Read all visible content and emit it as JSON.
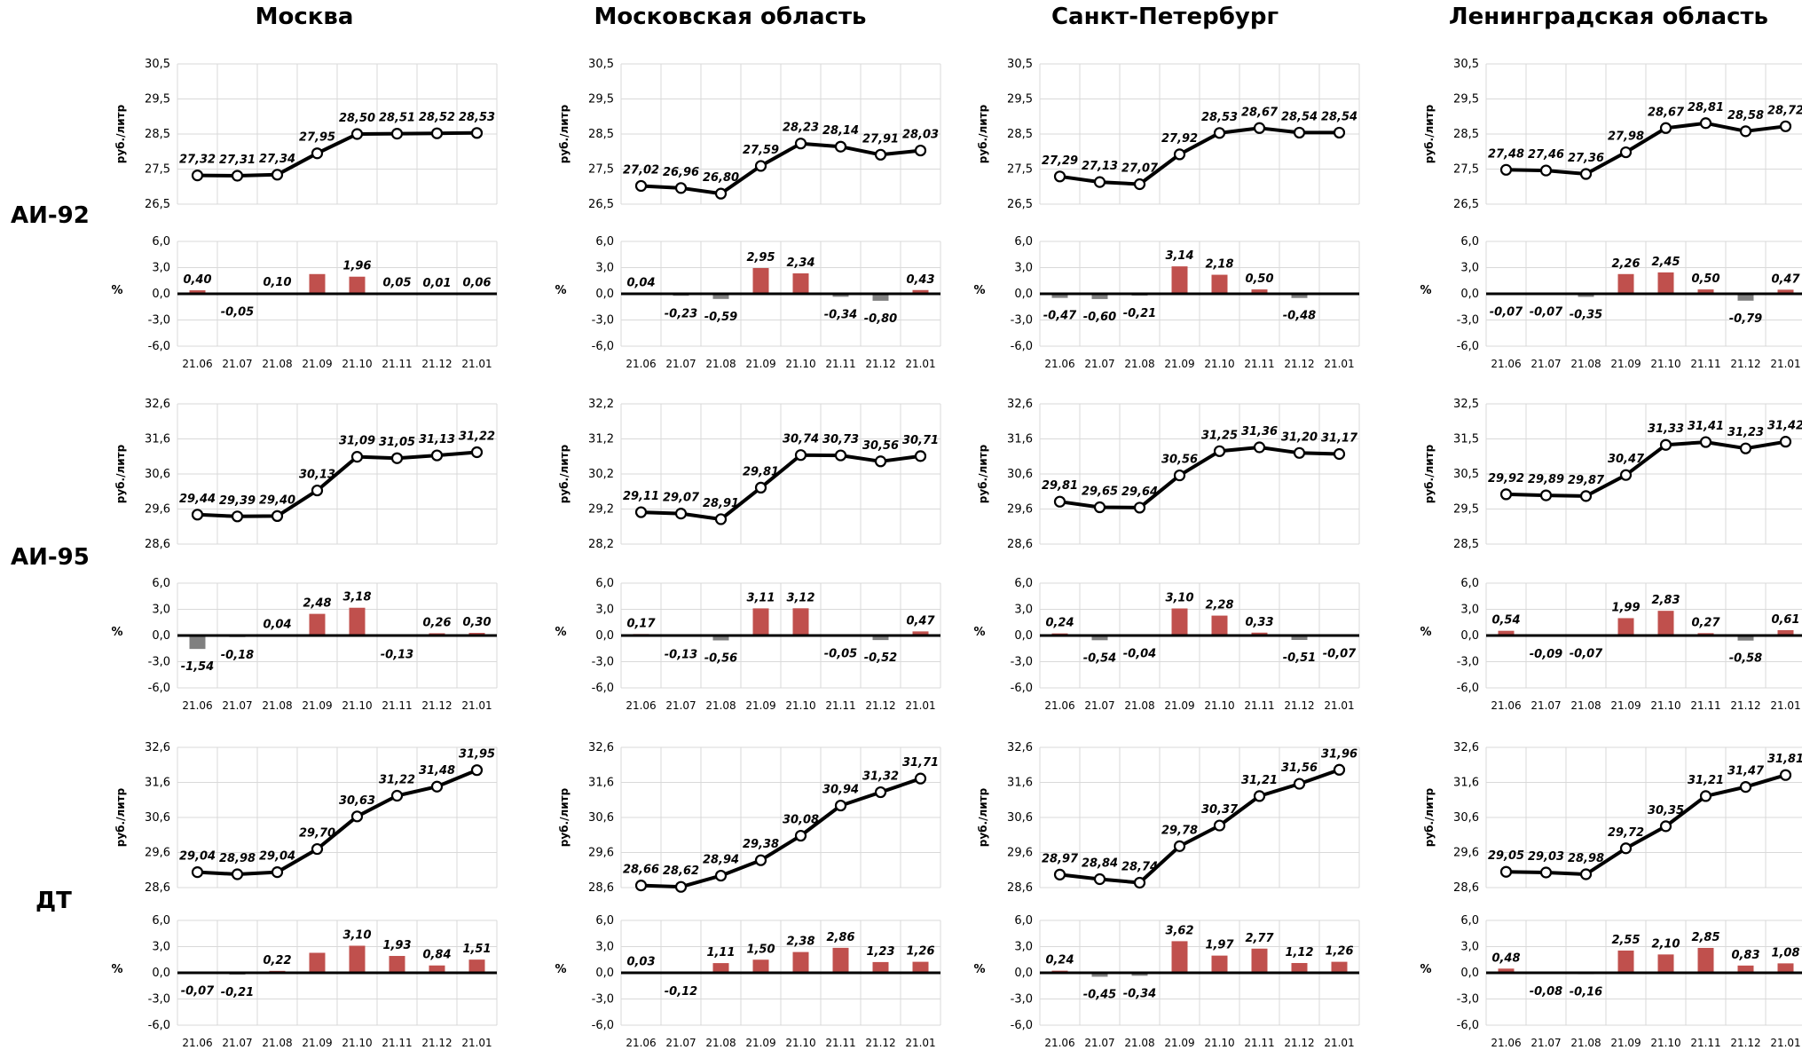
{
  "regions": [
    "Москва",
    "Московская область",
    "Санкт-Петербург",
    "Ленинградская область"
  ],
  "fuels": [
    "АИ-92",
    "АИ-95",
    "ДТ"
  ],
  "units": {
    "price": "руб./литр",
    "change": "%"
  },
  "colors": {
    "line": "#000000",
    "positive_bar": "#c0504d",
    "negative_bar": "#808080",
    "grid": "#d9d9d9"
  },
  "chart_data": [
    {
      "type": "line",
      "region": "Москва",
      "fuel": "АИ-92",
      "categories": [
        "21.06",
        "21.07",
        "21.08",
        "21.09",
        "21.10",
        "21.11",
        "21.12",
        "21.01"
      ],
      "values": [
        27.32,
        27.31,
        27.34,
        27.95,
        28.5,
        28.51,
        28.52,
        28.53
      ],
      "labels": [
        "27,32",
        "27,31",
        "27,34",
        "27,95",
        "28,50",
        "28,51",
        "28,52",
        "28,53"
      ],
      "ylabel": "руб./литр",
      "ylim": [
        26.5,
        30.5
      ],
      "yticks": [
        "26,5",
        "27,5",
        "28,5",
        "29,5",
        "30,5"
      ]
    },
    {
      "type": "bar",
      "region": "Москва",
      "fuel": "АИ-92",
      "categories": [
        "21.06",
        "21.07",
        "21.08",
        "21.09",
        "21.10",
        "21.11",
        "21.12",
        "21.01"
      ],
      "values": [
        0.4,
        -0.05,
        0.1,
        2.26,
        1.96,
        0.05,
        0.01,
        0.06
      ],
      "labels": [
        "0,40",
        "-0,05",
        "0,10",
        "",
        "1,96",
        "0,05",
        "0,01",
        "0,06"
      ],
      "ylabel": "%",
      "ylim": [
        -6,
        6
      ],
      "yticks": [
        "-6,0",
        "-3,0",
        "0,0",
        "3,0",
        "6,0"
      ]
    },
    {
      "type": "line",
      "region": "Московская область",
      "fuel": "АИ-92",
      "categories": [
        "21.06",
        "21.07",
        "21.08",
        "21.09",
        "21.10",
        "21.11",
        "21.12",
        "21.01"
      ],
      "values": [
        27.02,
        26.96,
        26.8,
        27.59,
        28.23,
        28.14,
        27.91,
        28.03
      ],
      "labels": [
        "27,02",
        "26,96",
        "26,80",
        "27,59",
        "28,23",
        "28,14",
        "27,91",
        "28,03"
      ],
      "ylabel": "руб./литр",
      "ylim": [
        26.5,
        30.5
      ],
      "yticks": [
        "26,5",
        "27,5",
        "28,5",
        "29,5",
        "30,5"
      ]
    },
    {
      "type": "bar",
      "region": "Московская область",
      "fuel": "АИ-92",
      "categories": [
        "21.06",
        "21.07",
        "21.08",
        "21.09",
        "21.10",
        "21.11",
        "21.12",
        "21.01"
      ],
      "values": [
        0.04,
        -0.23,
        -0.59,
        2.95,
        2.34,
        -0.34,
        -0.8,
        0.43
      ],
      "labels": [
        "0,04",
        "-0,23",
        "-0,59",
        "2,95",
        "2,34",
        "-0,34",
        "-0,80",
        "0,43"
      ],
      "ylabel": "%",
      "ylim": [
        -6,
        6
      ],
      "yticks": [
        "-6,0",
        "-3,0",
        "0,0",
        "3,0",
        "6,0"
      ]
    },
    {
      "type": "line",
      "region": "Санкт-Петербург",
      "fuel": "АИ-92",
      "categories": [
        "21.06",
        "21.07",
        "21.08",
        "21.09",
        "21.10",
        "21.11",
        "21.12",
        "21.01"
      ],
      "values": [
        27.29,
        27.13,
        27.07,
        27.92,
        28.53,
        28.67,
        28.54,
        28.54
      ],
      "labels": [
        "27,29",
        "27,13",
        "27,07",
        "27,92",
        "28,53",
        "28,67",
        "28,54",
        "28,54"
      ],
      "ylabel": "руб./литр",
      "ylim": [
        26.5,
        30.5
      ],
      "yticks": [
        "26,5",
        "27,5",
        "28,5",
        "29,5",
        "30,5"
      ]
    },
    {
      "type": "bar",
      "region": "Санкт-Петербург",
      "fuel": "АИ-92",
      "categories": [
        "21.06",
        "21.07",
        "21.08",
        "21.09",
        "21.10",
        "21.11",
        "21.12",
        "21.01"
      ],
      "values": [
        -0.47,
        -0.6,
        -0.21,
        3.14,
        2.18,
        0.5,
        -0.48,
        0.0
      ],
      "labels": [
        "-0,47",
        "-0,60",
        "-0,21",
        "3,14",
        "2,18",
        "0,50",
        "-0,48",
        ""
      ],
      "ylabel": "%",
      "ylim": [
        -6,
        6
      ],
      "yticks": [
        "-6,0",
        "-3,0",
        "0,0",
        "3,0",
        "6,0"
      ]
    },
    {
      "type": "line",
      "region": "Ленинградская область",
      "fuel": "АИ-92",
      "categories": [
        "21.06",
        "21.07",
        "21.08",
        "21.09",
        "21.10",
        "21.11",
        "21.12",
        "21.01"
      ],
      "values": [
        27.48,
        27.46,
        27.36,
        27.98,
        28.67,
        28.81,
        28.58,
        28.72
      ],
      "labels": [
        "27,48",
        "27,46",
        "27,36",
        "27,98",
        "28,67",
        "28,81",
        "28,58",
        "28,72"
      ],
      "ylabel": "руб./литр",
      "ylim": [
        26.5,
        30.5
      ],
      "yticks": [
        "26,5",
        "27,5",
        "28,5",
        "29,5",
        "30,5"
      ]
    },
    {
      "type": "bar",
      "region": "Ленинградская область",
      "fuel": "АИ-92",
      "categories": [
        "21.06",
        "21.07",
        "21.08",
        "21.09",
        "21.10",
        "21.11",
        "21.12",
        "21.01"
      ],
      "values": [
        -0.07,
        -0.07,
        -0.35,
        2.26,
        2.45,
        0.5,
        -0.79,
        0.47
      ],
      "labels": [
        "-0,07",
        "-0,07",
        "-0,35",
        "2,26",
        "2,45",
        "0,50",
        "-0,79",
        "0,47"
      ],
      "ylabel": "%",
      "ylim": [
        -6,
        6
      ],
      "yticks": [
        "-6,0",
        "-3,0",
        "0,0",
        "3,0",
        "6,0"
      ]
    },
    {
      "type": "line",
      "region": "Москва",
      "fuel": "АИ-95",
      "categories": [
        "21.06",
        "21.07",
        "21.08",
        "21.09",
        "21.10",
        "21.11",
        "21.12",
        "21.01"
      ],
      "values": [
        29.44,
        29.39,
        29.4,
        30.13,
        31.09,
        31.05,
        31.13,
        31.22
      ],
      "labels": [
        "29,44",
        "29,39",
        "29,40",
        "30,13",
        "31,09",
        "31,05",
        "31,13",
        "31,22"
      ],
      "ylabel": "руб./литр",
      "ylim": [
        28.6,
        32.6
      ],
      "yticks": [
        "28,6",
        "29,6",
        "30,6",
        "31,6",
        "32,6"
      ]
    },
    {
      "type": "bar",
      "region": "Москва",
      "fuel": "АИ-95",
      "categories": [
        "21.06",
        "21.07",
        "21.08",
        "21.09",
        "21.10",
        "21.11",
        "21.12",
        "21.01"
      ],
      "values": [
        -1.54,
        -0.18,
        0.04,
        2.48,
        3.18,
        -0.13,
        0.26,
        0.3
      ],
      "labels": [
        "-1,54",
        "-0,18",
        "0,04",
        "2,48",
        "3,18",
        "-0,13",
        "0,26",
        "0,30"
      ],
      "ylabel": "%",
      "ylim": [
        -6,
        6
      ],
      "yticks": [
        "-6,0",
        "-3,0",
        "0,0",
        "3,0",
        "6,0"
      ]
    },
    {
      "type": "line",
      "region": "Московская область",
      "fuel": "АИ-95",
      "categories": [
        "21.06",
        "21.07",
        "21.08",
        "21.09",
        "21.10",
        "21.11",
        "21.12",
        "21.01"
      ],
      "values": [
        29.11,
        29.07,
        28.91,
        29.81,
        30.74,
        30.73,
        30.56,
        30.71
      ],
      "labels": [
        "29,11",
        "29,07",
        "28,91",
        "29,81",
        "30,74",
        "30,73",
        "30,56",
        "30,71"
      ],
      "ylabel": "руб./литр",
      "ylim": [
        28.2,
        32.2
      ],
      "yticks": [
        "28,2",
        "29,2",
        "30,2",
        "31,2",
        "32,2"
      ]
    },
    {
      "type": "bar",
      "region": "Московская область",
      "fuel": "АИ-95",
      "categories": [
        "21.06",
        "21.07",
        "21.08",
        "21.09",
        "21.10",
        "21.11",
        "21.12",
        "21.01"
      ],
      "values": [
        0.17,
        -0.13,
        -0.56,
        3.11,
        3.12,
        -0.05,
        -0.52,
        0.47
      ],
      "labels": [
        "0,17",
        "-0,13",
        "-0,56",
        "3,11",
        "3,12",
        "-0,05",
        "-0,52",
        "0,47"
      ],
      "ylabel": "%",
      "ylim": [
        -6,
        6
      ],
      "yticks": [
        "-6,0",
        "-3,0",
        "0,0",
        "3,0",
        "6,0"
      ]
    },
    {
      "type": "line",
      "region": "Санкт-Петербург",
      "fuel": "АИ-95",
      "categories": [
        "21.06",
        "21.07",
        "21.08",
        "21.09",
        "21.10",
        "21.11",
        "21.12",
        "21.01"
      ],
      "values": [
        29.81,
        29.65,
        29.64,
        30.56,
        31.25,
        31.36,
        31.2,
        31.17
      ],
      "labels": [
        "29,81",
        "29,65",
        "29,64",
        "30,56",
        "31,25",
        "31,36",
        "31,20",
        "31,17"
      ],
      "ylabel": "руб./литр",
      "ylim": [
        28.6,
        32.6
      ],
      "yticks": [
        "28,6",
        "29,6",
        "30,6",
        "31,6",
        "32,6"
      ]
    },
    {
      "type": "bar",
      "region": "Санкт-Петербург",
      "fuel": "АИ-95",
      "categories": [
        "21.06",
        "21.07",
        "21.08",
        "21.09",
        "21.10",
        "21.11",
        "21.12",
        "21.01"
      ],
      "values": [
        0.24,
        -0.54,
        -0.04,
        3.1,
        2.28,
        0.33,
        -0.51,
        -0.07
      ],
      "labels": [
        "0,24",
        "-0,54",
        "-0,04",
        "3,10",
        "2,28",
        "0,33",
        "-0,51",
        "-0,07"
      ],
      "ylabel": "%",
      "ylim": [
        -6,
        6
      ],
      "yticks": [
        "-6,0",
        "-3,0",
        "0,0",
        "3,0",
        "6,0"
      ]
    },
    {
      "type": "line",
      "region": "Ленинградская область",
      "fuel": "АИ-95",
      "categories": [
        "21.06",
        "21.07",
        "21.08",
        "21.09",
        "21.10",
        "21.11",
        "21.12",
        "21.01"
      ],
      "values": [
        29.92,
        29.89,
        29.87,
        30.47,
        31.33,
        31.41,
        31.23,
        31.42
      ],
      "labels": [
        "29,92",
        "29,89",
        "29,87",
        "30,47",
        "31,33",
        "31,41",
        "31,23",
        "31,42"
      ],
      "ylabel": "руб./литр",
      "ylim": [
        28.5,
        32.5
      ],
      "yticks": [
        "28,5",
        "29,5",
        "30,5",
        "31,5",
        "32,5"
      ]
    },
    {
      "type": "bar",
      "region": "Ленинградская область",
      "fuel": "АИ-95",
      "categories": [
        "21.06",
        "21.07",
        "21.08",
        "21.09",
        "21.10",
        "21.11",
        "21.12",
        "21.01"
      ],
      "values": [
        0.54,
        -0.09,
        -0.07,
        1.99,
        2.83,
        0.27,
        -0.58,
        0.61
      ],
      "labels": [
        "0,54",
        "-0,09",
        "-0,07",
        "1,99",
        "2,83",
        "0,27",
        "-0,58",
        "0,61"
      ],
      "ylabel": "%",
      "ylim": [
        -6,
        6
      ],
      "yticks": [
        "-6,0",
        "-3,0",
        "0,0",
        "3,0",
        "6,0"
      ]
    },
    {
      "type": "line",
      "region": "Москва",
      "fuel": "ДТ",
      "categories": [
        "21.06",
        "21.07",
        "21.08",
        "21.09",
        "21.10",
        "21.11",
        "21.12",
        "21.01"
      ],
      "values": [
        29.04,
        28.98,
        29.04,
        29.7,
        30.63,
        31.22,
        31.48,
        31.95
      ],
      "labels": [
        "29,04",
        "28,98",
        "29,04",
        "29,70",
        "30,63",
        "31,22",
        "31,48",
        "31,95"
      ],
      "ylabel": "руб./литр",
      "ylim": [
        28.6,
        32.6
      ],
      "yticks": [
        "28,6",
        "29,6",
        "30,6",
        "31,6",
        "32,6"
      ]
    },
    {
      "type": "bar",
      "region": "Москва",
      "fuel": "ДТ",
      "categories": [
        "21.06",
        "21.07",
        "21.08",
        "21.09",
        "21.10",
        "21.11",
        "21.12",
        "21.01"
      ],
      "values": [
        -0.07,
        -0.21,
        0.22,
        2.29,
        3.1,
        1.93,
        0.84,
        1.51
      ],
      "labels": [
        "-0,07",
        "-0,21",
        "0,22",
        "",
        "3,10",
        "1,93",
        "0,84",
        "1,51"
      ],
      "ylabel": "%",
      "ylim": [
        -6,
        6
      ],
      "yticks": [
        "-6,0",
        "-3,0",
        "0,0",
        "3,0",
        "6,0"
      ]
    },
    {
      "type": "line",
      "region": "Московская область",
      "fuel": "ДТ",
      "categories": [
        "21.06",
        "21.07",
        "21.08",
        "21.09",
        "21.10",
        "21.11",
        "21.12",
        "21.01"
      ],
      "values": [
        28.66,
        28.62,
        28.94,
        29.38,
        30.08,
        30.94,
        31.32,
        31.71
      ],
      "labels": [
        "28,66",
        "28,62",
        "28,94",
        "29,38",
        "30,08",
        "30,94",
        "31,32",
        "31,71"
      ],
      "ylabel": "руб./литр",
      "ylim": [
        28.6,
        32.6
      ],
      "yticks": [
        "28,6",
        "29,6",
        "30,6",
        "31,6",
        "32,6"
      ]
    },
    {
      "type": "bar",
      "region": "Московская область",
      "fuel": "ДТ",
      "categories": [
        "21.06",
        "21.07",
        "21.08",
        "21.09",
        "21.10",
        "21.11",
        "21.12",
        "21.01"
      ],
      "values": [
        0.03,
        -0.12,
        1.11,
        1.5,
        2.38,
        2.86,
        1.23,
        1.26
      ],
      "labels": [
        "0,03",
        "-0,12",
        "1,11",
        "1,50",
        "2,38",
        "2,86",
        "1,23",
        "1,26"
      ],
      "ylabel": "%",
      "ylim": [
        -6,
        6
      ],
      "yticks": [
        "-6,0",
        "-3,0",
        "0,0",
        "3,0",
        "6,0"
      ]
    },
    {
      "type": "line",
      "region": "Санкт-Петербург",
      "fuel": "ДТ",
      "categories": [
        "21.06",
        "21.07",
        "21.08",
        "21.09",
        "21.10",
        "21.11",
        "21.12",
        "21.01"
      ],
      "values": [
        28.97,
        28.84,
        28.74,
        29.78,
        30.37,
        31.21,
        31.56,
        31.96
      ],
      "labels": [
        "28,97",
        "28,84",
        "28,74",
        "29,78",
        "30,37",
        "31,21",
        "31,56",
        "31,96"
      ],
      "ylabel": "руб./литр",
      "ylim": [
        28.6,
        32.6
      ],
      "yticks": [
        "28,6",
        "29,6",
        "30,6",
        "31,6",
        "32,6"
      ]
    },
    {
      "type": "bar",
      "region": "Санкт-Петербург",
      "fuel": "ДТ",
      "categories": [
        "21.06",
        "21.07",
        "21.08",
        "21.09",
        "21.10",
        "21.11",
        "21.12",
        "21.01"
      ],
      "values": [
        0.24,
        -0.45,
        -0.34,
        3.62,
        1.97,
        2.77,
        1.12,
        1.26
      ],
      "labels": [
        "0,24",
        "-0,45",
        "-0,34",
        "3,62",
        "1,97",
        "2,77",
        "1,12",
        "1,26"
      ],
      "ylabel": "%",
      "ylim": [
        -6,
        6
      ],
      "yticks": [
        "-6,0",
        "-3,0",
        "0,0",
        "3,0",
        "6,0"
      ]
    },
    {
      "type": "line",
      "region": "Ленинградская область",
      "fuel": "ДТ",
      "categories": [
        "21.06",
        "21.07",
        "21.08",
        "21.09",
        "21.10",
        "21.11",
        "21.12",
        "21.01"
      ],
      "values": [
        29.05,
        29.03,
        28.98,
        29.72,
        30.35,
        31.21,
        31.47,
        31.81
      ],
      "labels": [
        "29,05",
        "29,03",
        "28,98",
        "29,72",
        "30,35",
        "31,21",
        "31,47",
        "31,81"
      ],
      "ylabel": "руб./литр",
      "ylim": [
        28.6,
        32.6
      ],
      "yticks": [
        "28,6",
        "29,6",
        "30,6",
        "31,6",
        "32,6"
      ]
    },
    {
      "type": "bar",
      "region": "Ленинградская область",
      "fuel": "ДТ",
      "categories": [
        "21.06",
        "21.07",
        "21.08",
        "21.09",
        "21.10",
        "21.11",
        "21.12",
        "21.01"
      ],
      "values": [
        0.48,
        -0.08,
        -0.16,
        2.55,
        2.1,
        2.85,
        0.83,
        1.08
      ],
      "labels": [
        "0,48",
        "-0,08",
        "-0,16",
        "2,55",
        "2,10",
        "2,85",
        "0,83",
        "1,08"
      ],
      "ylabel": "%",
      "ylim": [
        -6,
        6
      ],
      "yticks": [
        "-6,0",
        "-3,0",
        "0,0",
        "3,0",
        "6,0"
      ]
    }
  ]
}
